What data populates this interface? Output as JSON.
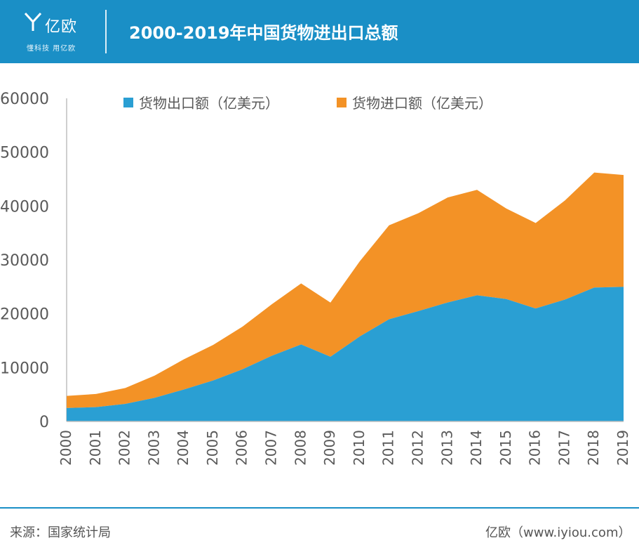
{
  "header": {
    "logo_text": "亿欧",
    "logo_slogan": "懂科技 用亿欧",
    "title": "2000-2019年中国货物进出口总额"
  },
  "colors": {
    "header_bg": "#1A8FC6",
    "export": "#2A9FD3",
    "import": "#F39226",
    "axis": "#BFBFBF",
    "text": "#595959"
  },
  "chart_data": {
    "type": "area",
    "stacked": true,
    "categories": [
      "2000",
      "2001",
      "2002",
      "2003",
      "2004",
      "2005",
      "2006",
      "2007",
      "2008",
      "2009",
      "2010",
      "2011",
      "2012",
      "2013",
      "2014",
      "2015",
      "2016",
      "2017",
      "2018",
      "2019"
    ],
    "series": [
      {
        "name": "货物出口额（亿美元）",
        "values": [
          2492,
          2661,
          3256,
          4382,
          5933,
          7620,
          9689,
          12200,
          14307,
          12016,
          15778,
          18984,
          20487,
          22090,
          23423,
          22735,
          20976,
          22633,
          24867,
          24990
        ]
      },
      {
        "name": "货物进口额（亿美元）",
        "values": [
          2251,
          2436,
          2952,
          4128,
          5612,
          6600,
          7915,
          9561,
          11326,
          10059,
          13962,
          17435,
          18184,
          19500,
          19592,
          16796,
          15879,
          18410,
          21357,
          20771
        ]
      }
    ],
    "yticks": [
      0,
      10000,
      20000,
      30000,
      40000,
      50000,
      60000
    ],
    "ylim": [
      0,
      60000
    ],
    "legend_position": "top",
    "grid": false
  },
  "footer": {
    "source": "来源：国家统计局",
    "site": "亿欧（www.iyiou.com）"
  }
}
